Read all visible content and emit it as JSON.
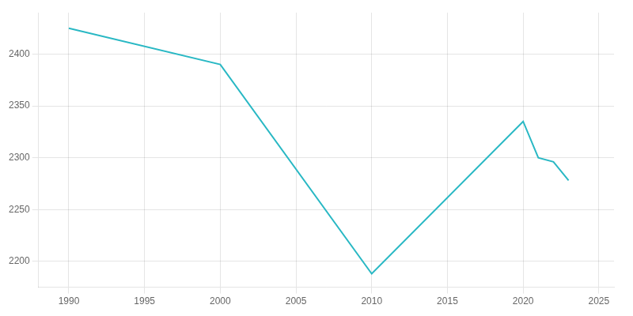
{
  "chart_data": {
    "type": "line",
    "x": [
      1990,
      2000,
      2010,
      2020,
      2021,
      2022,
      2023
    ],
    "values": [
      2425,
      2390,
      2188,
      2335,
      2300,
      2296,
      2278
    ],
    "color": "#29b8c4",
    "xlim": [
      1988,
      2026
    ],
    "ylim": [
      2175,
      2440
    ],
    "xticks": [
      1990,
      1995,
      2000,
      2005,
      2010,
      2015,
      2020,
      2025
    ],
    "yticks": [
      2200,
      2250,
      2300,
      2350,
      2400
    ],
    "grid": true
  }
}
